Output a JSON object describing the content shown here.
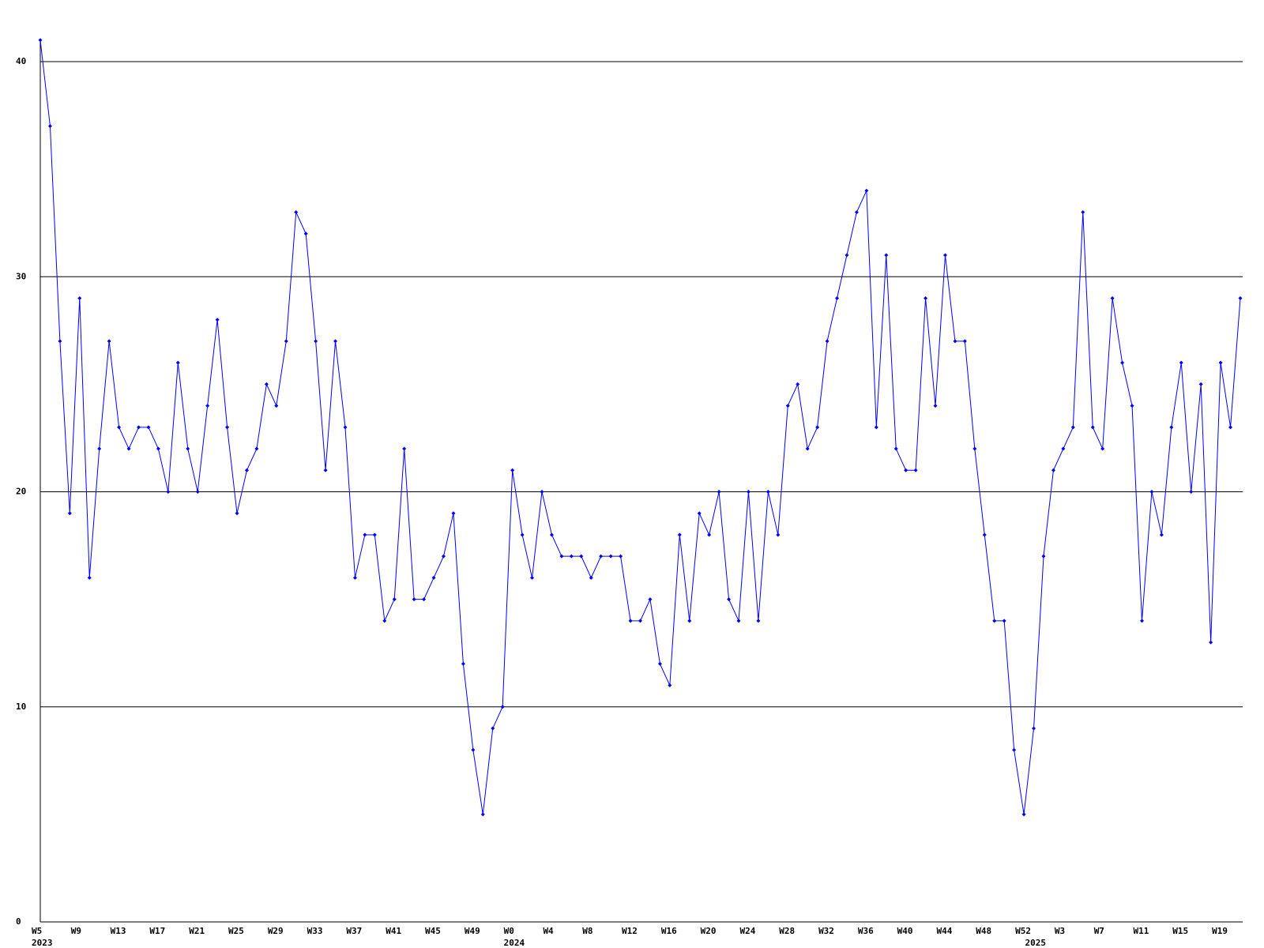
{
  "chart_data": {
    "type": "line",
    "categories": [
      "W5",
      null,
      null,
      null,
      "W9",
      null,
      null,
      null,
      "W13",
      null,
      null,
      null,
      "W17",
      null,
      null,
      null,
      "W21",
      null,
      null,
      null,
      "W25",
      null,
      null,
      null,
      "W29",
      null,
      null,
      null,
      "W33",
      null,
      null,
      null,
      "W37",
      null,
      null,
      null,
      "W41",
      null,
      null,
      null,
      "W45",
      null,
      null,
      null,
      "W49",
      null,
      null,
      null,
      "W0",
      null,
      null,
      null,
      "W4",
      null,
      null,
      null,
      "W8",
      null,
      null,
      null,
      "W12",
      null,
      null,
      null,
      "W16",
      null,
      null,
      null,
      "W20",
      null,
      null,
      null,
      "W24",
      null,
      null,
      null,
      "W28",
      null,
      null,
      null,
      "W32",
      null,
      null,
      null,
      "W36",
      null,
      null,
      null,
      "W40",
      null,
      null,
      null,
      "W44",
      null,
      null,
      null,
      "W48",
      null,
      null,
      null,
      "W52",
      null,
      null,
      null,
      "W3",
      null,
      null,
      null,
      "W7",
      null,
      null,
      null,
      "W11",
      null,
      null,
      null,
      "W15",
      null,
      null,
      null,
      "W19",
      null,
      null
    ],
    "category_groups": [
      "2023",
      null,
      null,
      null,
      null,
      null,
      null,
      null,
      null,
      null,
      null,
      null,
      null,
      null,
      null,
      null,
      null,
      null,
      null,
      null,
      null,
      null,
      null,
      null,
      null,
      null,
      null,
      null,
      null,
      null,
      null,
      null,
      null,
      null,
      null,
      null,
      null,
      null,
      null,
      null,
      null,
      null,
      null,
      null,
      null,
      null,
      null,
      null,
      "2024",
      null,
      null,
      null,
      null,
      null,
      null,
      null,
      null,
      null,
      null,
      null,
      null,
      null,
      null,
      null,
      null,
      null,
      null,
      null,
      null,
      null,
      null,
      null,
      null,
      null,
      null,
      null,
      null,
      null,
      null,
      null,
      null,
      null,
      null,
      null,
      null,
      null,
      null,
      null,
      null,
      null,
      null,
      null,
      null,
      null,
      null,
      null,
      null,
      null,
      null,
      null,
      null,
      "2025",
      null,
      null,
      null,
      null,
      null,
      null,
      null,
      null,
      null,
      null,
      null,
      null,
      null,
      null,
      null,
      null,
      null,
      null,
      null,
      null,
      null
    ],
    "series": [
      {
        "color": "#0000ff",
        "values": [
          41,
          37,
          27,
          19,
          29,
          16,
          22,
          27,
          23,
          22,
          23,
          23,
          22,
          20,
          26,
          22,
          20,
          24,
          28,
          23,
          19,
          21,
          22,
          25,
          24,
          27,
          33,
          32,
          27,
          21,
          27,
          23,
          16,
          18,
          18,
          14,
          15,
          22,
          15,
          15,
          16,
          17,
          19,
          12,
          8,
          5,
          9,
          10,
          21,
          18,
          16,
          20,
          18,
          17,
          17,
          17,
          16,
          17,
          17,
          17,
          14,
          14,
          15,
          12,
          11,
          18,
          14,
          19,
          18,
          20,
          15,
          14,
          20,
          14,
          20,
          18,
          24,
          25,
          22,
          23,
          27,
          29,
          31,
          33,
          34,
          23,
          31,
          22,
          21,
          21,
          29,
          24,
          31,
          27,
          27,
          22,
          18,
          14,
          14,
          8,
          5,
          9,
          17,
          21,
          22,
          23,
          33,
          23,
          22,
          29,
          26,
          24,
          14,
          20,
          18,
          23,
          26,
          20,
          25,
          13,
          26,
          23,
          29
        ]
      }
    ],
    "ylim": [
      0,
      40
    ],
    "yticks": [
      0,
      10,
      20,
      30,
      40
    ],
    "grid": true
  }
}
